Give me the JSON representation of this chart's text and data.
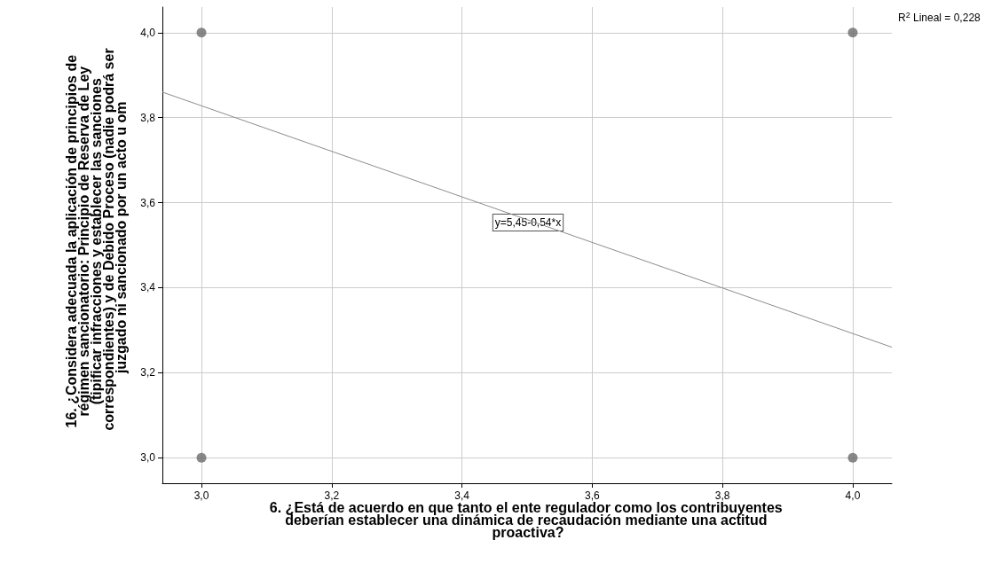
{
  "chart_data": {
    "type": "scatter",
    "xlabel": "6. ¿Está de acuerdo en que tanto el ente regulador como los contribuyentes deberían establecer una dinámica de recaudación mediante una actitud proactiva?",
    "ylabel": "16. ¿Considera adecuada la aplicación de principios de régimen sancionatorio: Principio de Reserva de Ley (tipificar infracciones y establecer las sanciones correspondientes) y de Debido Proceso (nadie podrá ser juzgado ni sancionado por un acto u om",
    "xlim": [
      2.94,
      4.06
    ],
    "ylim": [
      2.94,
      4.06
    ],
    "xticks": [
      {
        "value": 3.0,
        "label": "3,0"
      },
      {
        "value": 3.2,
        "label": "3,2"
      },
      {
        "value": 3.4,
        "label": "3,4"
      },
      {
        "value": 3.6,
        "label": "3,6"
      },
      {
        "value": 3.8,
        "label": "3,8"
      },
      {
        "value": 4.0,
        "label": "4,0"
      }
    ],
    "yticks": [
      {
        "value": 3.0,
        "label": "3,0"
      },
      {
        "value": 3.2,
        "label": "3,2"
      },
      {
        "value": 3.4,
        "label": "3,4"
      },
      {
        "value": 3.6,
        "label": "3,6"
      },
      {
        "value": 3.8,
        "label": "3,8"
      },
      {
        "value": 4.0,
        "label": "4,0"
      }
    ],
    "grid": true,
    "series": [
      {
        "color": "#6b6b6b",
        "x": [
          3,
          3,
          4,
          4
        ],
        "values": [
          3,
          4,
          3,
          4
        ],
        "marker": "circle"
      },
      {
        "type": "line",
        "color": "#8c8c8c",
        "x": [
          2.94,
          4.06
        ],
        "values": [
          3.86,
          3.26
        ],
        "line_style": "solid"
      }
    ],
    "annotations": [
      "y=5,45-0,54*x",
      "R$^{2}$ Lineal = 0,228"
    ]
  }
}
